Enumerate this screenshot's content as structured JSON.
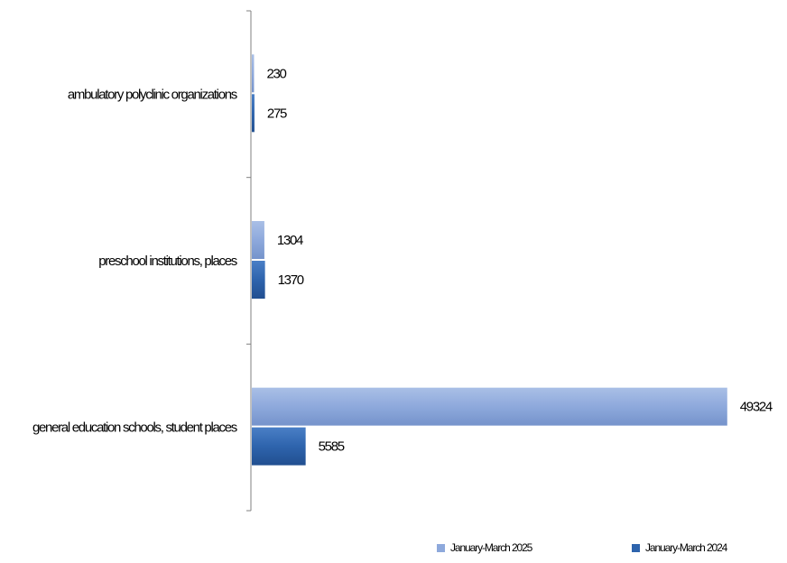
{
  "chart_data": {
    "type": "bar",
    "orientation": "horizontal",
    "categories": [
      "ambulatory polyclinic organizations",
      "preschool institutions, places",
      "general education schools, student places"
    ],
    "series": [
      {
        "name": "January-March 2025",
        "values": [
          230,
          1304,
          49324
        ],
        "color": "#8ea9dc"
      },
      {
        "name": "January-March 2024",
        "values": [
          275,
          1370,
          5585
        ],
        "color": "#2e64ad"
      }
    ],
    "value_labels": [
      [
        "230",
        "1304",
        "49324"
      ],
      [
        "275",
        "1370",
        "5585"
      ]
    ],
    "value_axis_range": [
      0,
      50000
    ],
    "grid": false,
    "legend_position": "bottom-right"
  }
}
